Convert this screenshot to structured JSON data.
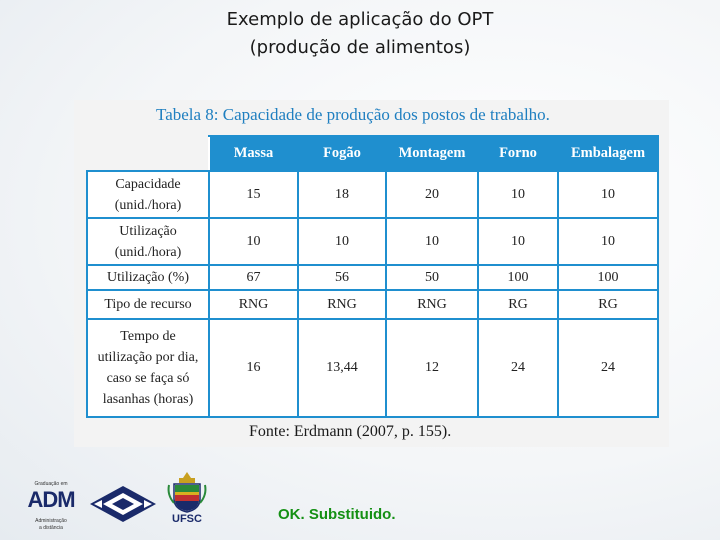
{
  "slide": {
    "title_line1": "Exemplo de aplicação do OPT",
    "title_line2": "(produção de alimentos)",
    "footer_note": "OK. Substituido."
  },
  "table": {
    "caption": "Tabela 8: Capacidade de produção dos postos de trabalho.",
    "columns": [
      "Massa",
      "Fogão",
      "Montagem",
      "Forno",
      "Embalagem"
    ],
    "rows": [
      {
        "label_lines": [
          "Capacidade",
          "(unid./hora)"
        ],
        "values": [
          "15",
          "18",
          "20",
          "10",
          "10"
        ]
      },
      {
        "label_lines": [
          "Utilização",
          "(unid./hora)"
        ],
        "values": [
          "10",
          "10",
          "10",
          "10",
          "10"
        ]
      },
      {
        "label_lines": [
          "Utilização (%)"
        ],
        "values": [
          "67",
          "56",
          "50",
          "100",
          "100"
        ]
      },
      {
        "label_lines": [
          "Tipo de recurso"
        ],
        "values": [
          "RNG",
          "RNG",
          "RNG",
          "RG",
          "RG"
        ]
      },
      {
        "label_lines": [
          "Tempo de",
          "utilização por dia,",
          "caso se faça só",
          "lasanhas (horas)"
        ],
        "values": [
          "16",
          "13,44",
          "12",
          "24",
          "24"
        ]
      }
    ],
    "source": "Fonte: Erdmann (2007, p. 155)."
  },
  "logos": {
    "adm_top": "Graduação em",
    "adm_main": "ADM",
    "adm_sub1": "Administração",
    "adm_sub2": "a distância",
    "ufsc": "UFSC"
  },
  "colors": {
    "accent_blue": "#1f8fcf",
    "caption_blue": "#1f7fc0",
    "note_green": "#149014",
    "logo_navy": "#1a2a6a"
  }
}
